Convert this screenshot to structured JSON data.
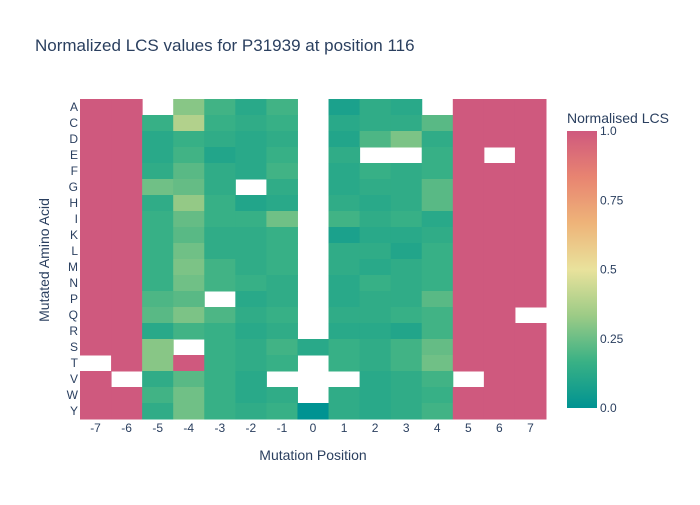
{
  "chart_data": {
    "type": "heatmap",
    "title": "Normalized LCS values for P31939 at position 116",
    "xlabel": "Mutation Position",
    "ylabel": "Mutated Amino Acid",
    "x": [
      "-7",
      "-6",
      "-5",
      "-4",
      "-3",
      "-2",
      "-1",
      "0",
      "1",
      "2",
      "3",
      "4",
      "5",
      "6",
      "7"
    ],
    "y": [
      "A",
      "C",
      "D",
      "E",
      "F",
      "G",
      "H",
      "I",
      "K",
      "L",
      "M",
      "N",
      "P",
      "Q",
      "R",
      "S",
      "T",
      "V",
      "W",
      "Y"
    ],
    "z": [
      [
        1.0,
        1.0,
        null,
        0.3,
        0.18,
        0.12,
        0.18,
        null,
        0.08,
        0.14,
        0.12,
        null,
        1.0,
        1.0,
        1.0
      ],
      [
        1.0,
        1.0,
        0.16,
        0.38,
        0.16,
        0.14,
        0.16,
        null,
        0.12,
        0.14,
        0.14,
        0.22,
        1.0,
        1.0,
        1.0
      ],
      [
        1.0,
        1.0,
        0.12,
        0.16,
        0.14,
        0.12,
        0.14,
        null,
        0.1,
        0.2,
        0.28,
        0.14,
        1.0,
        1.0,
        1.0
      ],
      [
        1.0,
        1.0,
        0.12,
        0.18,
        0.1,
        0.12,
        0.16,
        null,
        0.14,
        null,
        null,
        0.16,
        1.0,
        null,
        1.0
      ],
      [
        1.0,
        1.0,
        0.14,
        0.22,
        0.14,
        0.12,
        0.18,
        null,
        0.12,
        0.16,
        0.14,
        0.16,
        1.0,
        1.0,
        1.0
      ],
      [
        1.0,
        1.0,
        0.26,
        0.24,
        0.14,
        null,
        0.14,
        null,
        0.12,
        0.14,
        0.14,
        0.22,
        1.0,
        1.0,
        1.0
      ],
      [
        1.0,
        1.0,
        0.14,
        0.32,
        0.16,
        0.1,
        0.12,
        null,
        0.14,
        0.12,
        0.14,
        0.22,
        1.0,
        1.0,
        1.0
      ],
      [
        1.0,
        1.0,
        0.16,
        0.24,
        0.16,
        0.16,
        0.26,
        null,
        0.18,
        0.14,
        0.16,
        0.12,
        1.0,
        1.0,
        1.0
      ],
      [
        1.0,
        1.0,
        0.16,
        0.22,
        0.14,
        0.14,
        0.16,
        null,
        0.08,
        0.12,
        0.12,
        0.14,
        1.0,
        1.0,
        1.0
      ],
      [
        1.0,
        1.0,
        0.16,
        0.26,
        0.14,
        0.14,
        0.16,
        null,
        0.14,
        0.14,
        0.1,
        0.16,
        1.0,
        1.0,
        1.0
      ],
      [
        1.0,
        1.0,
        0.16,
        0.28,
        0.18,
        0.14,
        0.16,
        null,
        0.14,
        0.12,
        0.14,
        0.16,
        1.0,
        1.0,
        1.0
      ],
      [
        1.0,
        1.0,
        0.16,
        0.26,
        0.18,
        0.16,
        0.14,
        null,
        0.12,
        0.16,
        0.14,
        0.16,
        1.0,
        1.0,
        1.0
      ],
      [
        1.0,
        1.0,
        0.2,
        0.22,
        null,
        0.12,
        0.14,
        null,
        0.12,
        0.14,
        0.14,
        0.22,
        1.0,
        1.0,
        1.0
      ],
      [
        1.0,
        1.0,
        0.22,
        0.28,
        0.2,
        0.14,
        0.16,
        null,
        0.14,
        0.14,
        0.16,
        0.18,
        1.0,
        1.0,
        null
      ],
      [
        1.0,
        1.0,
        0.12,
        0.18,
        0.16,
        0.12,
        0.14,
        null,
        0.12,
        0.12,
        0.1,
        0.18,
        1.0,
        1.0,
        1.0
      ],
      [
        1.0,
        1.0,
        0.3,
        null,
        0.16,
        0.14,
        0.18,
        0.12,
        0.16,
        0.14,
        0.18,
        0.24,
        1.0,
        1.0,
        1.0
      ],
      [
        null,
        1.0,
        0.3,
        1.0,
        0.16,
        0.14,
        0.16,
        null,
        0.16,
        0.14,
        0.18,
        0.26,
        1.0,
        1.0,
        1.0
      ],
      [
        1.0,
        null,
        0.14,
        0.22,
        0.16,
        0.12,
        null,
        null,
        null,
        0.12,
        0.14,
        0.18,
        null,
        1.0,
        1.0
      ],
      [
        1.0,
        1.0,
        0.18,
        0.26,
        0.16,
        0.12,
        0.14,
        null,
        0.14,
        0.12,
        0.14,
        0.16,
        1.0,
        1.0,
        1.0
      ],
      [
        1.0,
        1.0,
        0.14,
        0.26,
        0.16,
        0.14,
        0.16,
        0.0,
        0.14,
        0.12,
        0.14,
        0.18,
        1.0,
        1.0,
        1.0
      ]
    ],
    "colorbar": {
      "title": "Normalised LCS",
      "range": [
        0,
        1
      ],
      "ticks": [
        "0.0",
        "0.25",
        "0.5",
        "0.75",
        "1.0"
      ],
      "tick_values": [
        0,
        0.25,
        0.5,
        0.75,
        1.0
      ]
    },
    "colorscale": [
      "#009B9E",
      "#42B7B9",
      "#A7D3D4",
      "#F1F1F1",
      "#E4C1D9",
      "#D691C1",
      "#C75DAB"
    ],
    "colorscale_name": "temps",
    "colorscale_stops": [
      [
        0.0,
        "#009392"
      ],
      [
        0.1667,
        "#39b185"
      ],
      [
        0.3333,
        "#9ccb86"
      ],
      [
        0.5,
        "#e9e29c"
      ],
      [
        0.6667,
        "#eeb479"
      ],
      [
        0.8333,
        "#e88471"
      ],
      [
        1.0,
        "#cf597e"
      ]
    ],
    "grid": false
  }
}
